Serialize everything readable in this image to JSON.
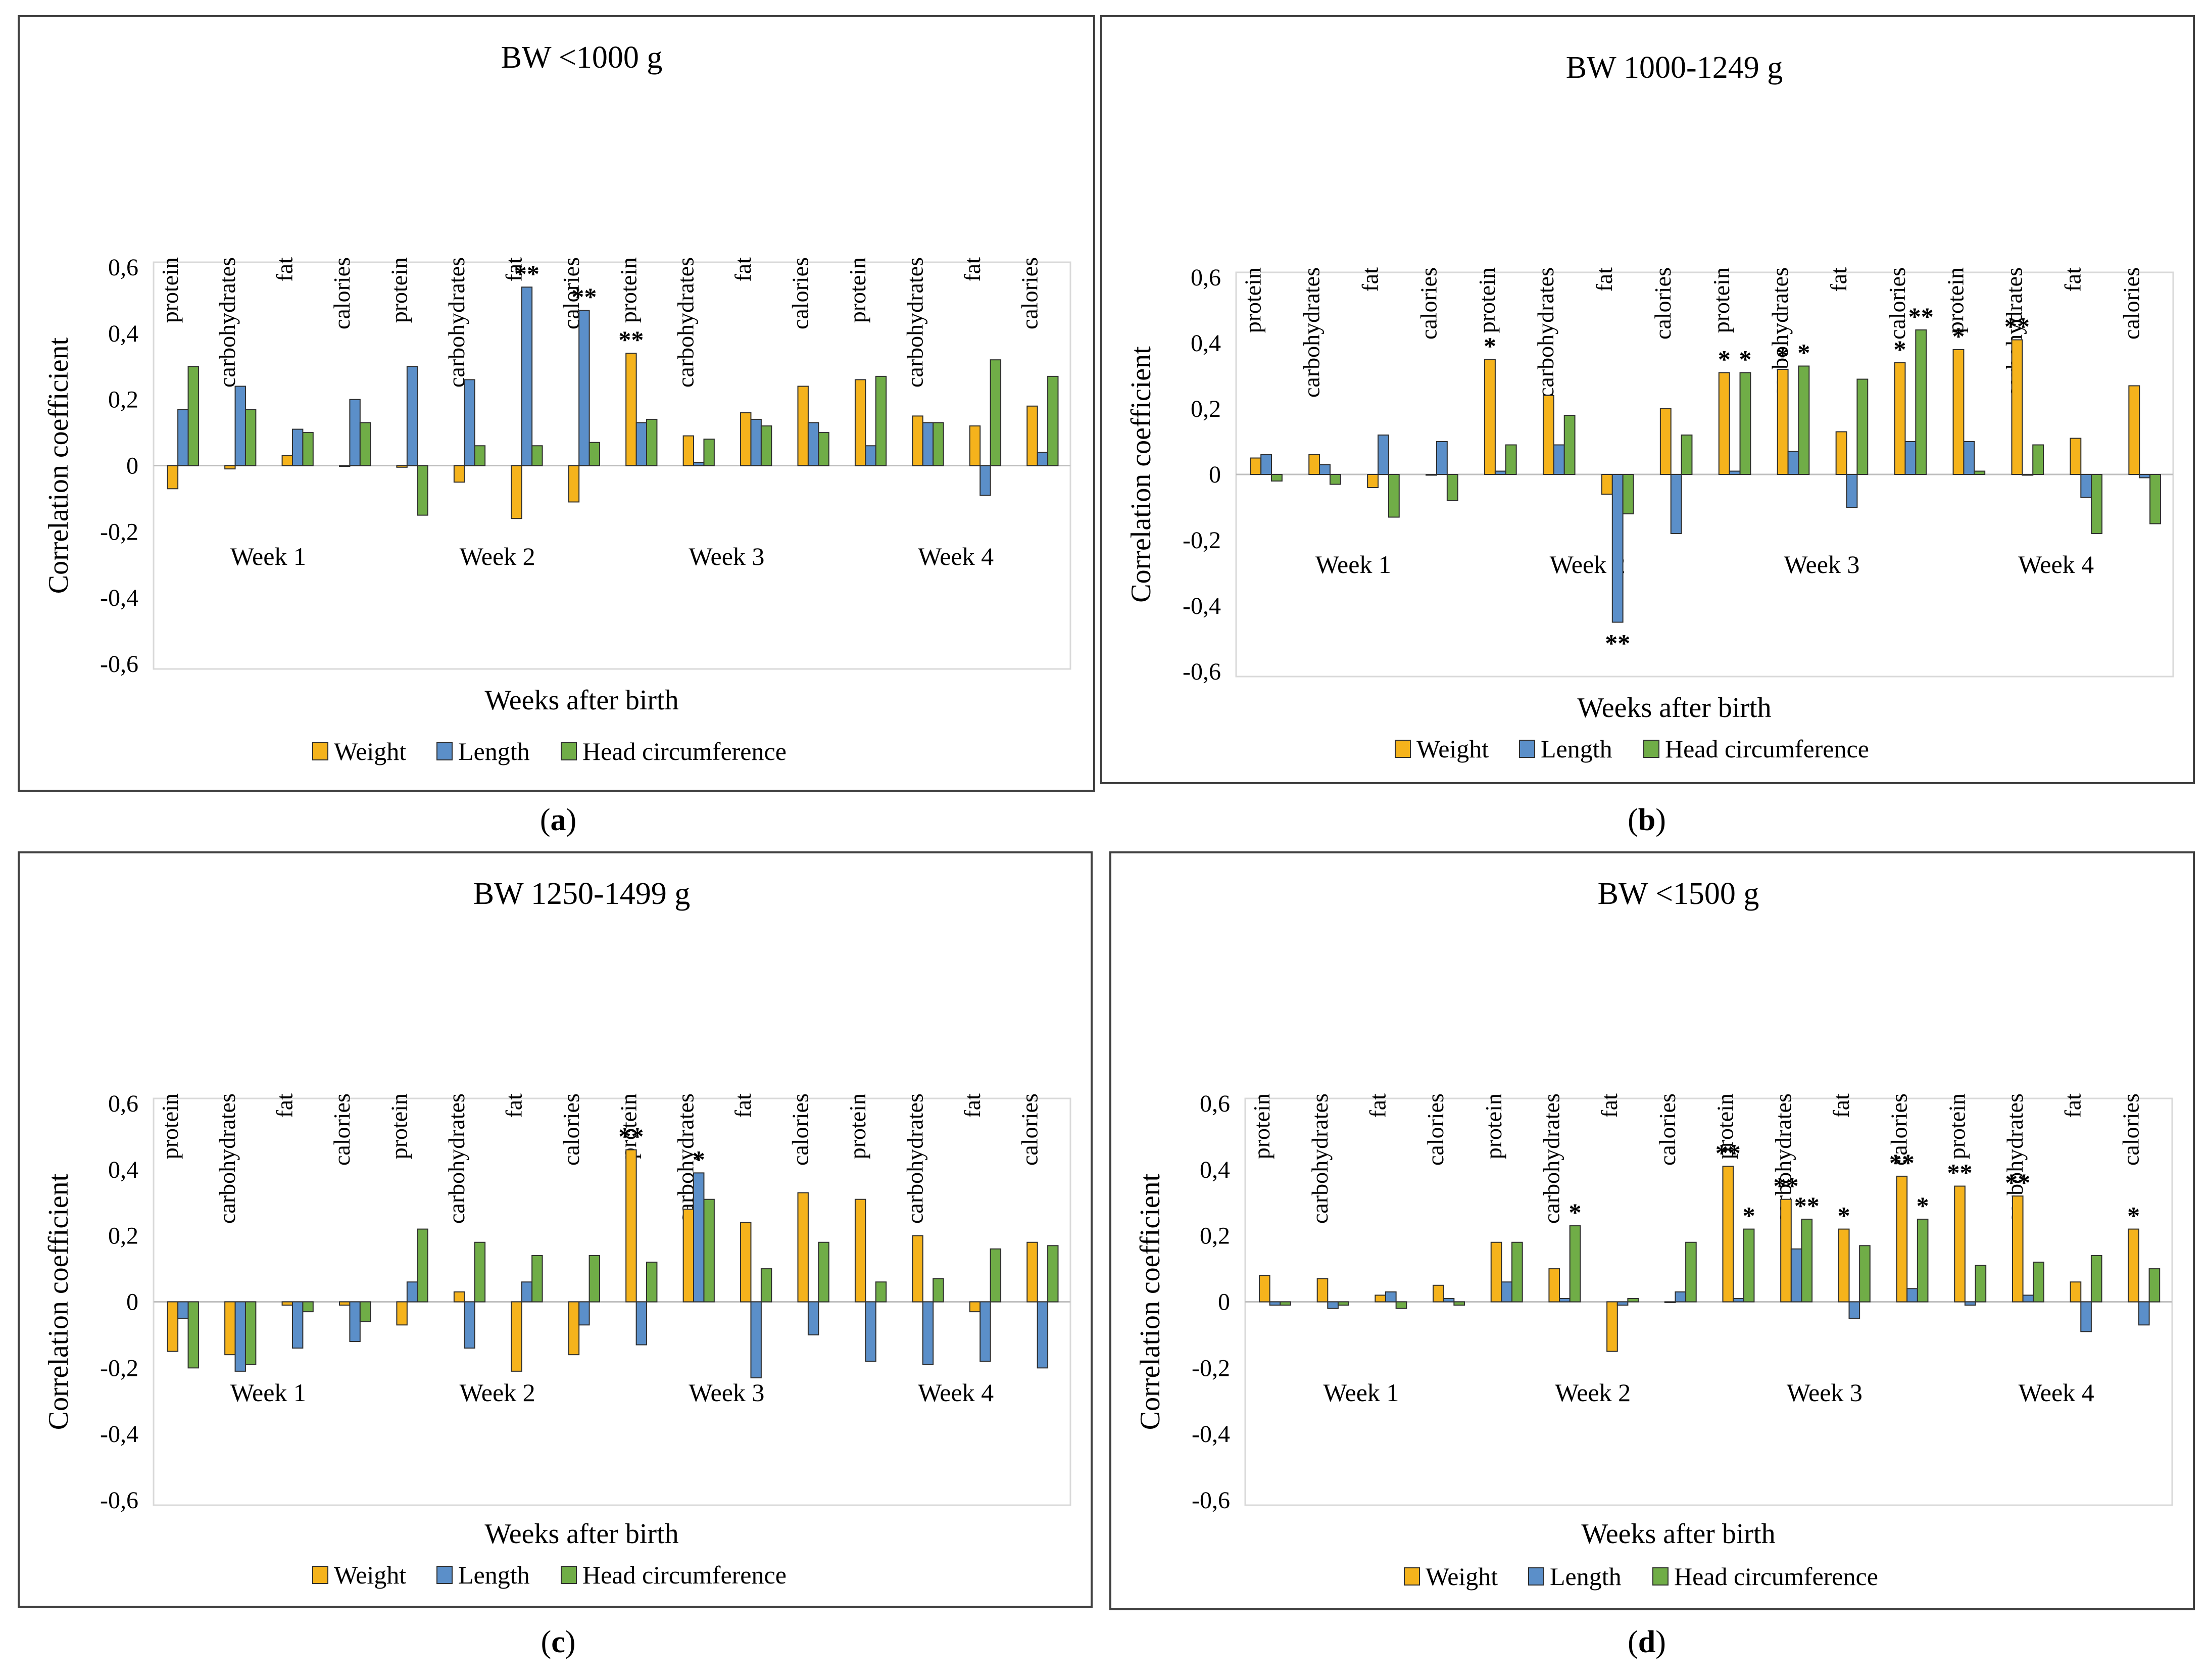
{
  "figure": {
    "captions": [
      "(a)",
      "(b)",
      "(c)",
      "(d)"
    ],
    "caption_letters": [
      "a",
      "b",
      "c",
      "d"
    ]
  },
  "colors": {
    "Weight": "#F5B31C",
    "Length": "#5B8FC9",
    "Head circumference": "#70AD47",
    "bar_outline": "#2f2f2f",
    "grid": "#d9d9d9",
    "frame": "#404040"
  },
  "chart_data": [
    {
      "type": "bar",
      "title": "BW <1000 g",
      "xlabel": "Weeks after birth",
      "ylabel": "Correlation coefficient",
      "ylim": [
        -0.6,
        0.6
      ],
      "yticks": [
        "0,6",
        "0,4",
        "0,2",
        "0",
        "-0,2",
        "-0,4",
        "-0,6"
      ],
      "groups": [
        "Week 1",
        "Week 2",
        "Week 3",
        "Week 4"
      ],
      "categories": [
        "protein",
        "carbohydrates",
        "fat",
        "calories"
      ],
      "legend": [
        "Weight",
        "Length",
        "Head circumference"
      ],
      "series": [
        {
          "name": "Weight",
          "values": [
            [
              -0.07,
              -0.01,
              0.03,
              0.0
            ],
            [
              -0.005,
              -0.05,
              -0.16,
              -0.11
            ],
            [
              0.34,
              0.09,
              0.16,
              0.24
            ],
            [
              0.26,
              0.15,
              0.12,
              0.18
            ]
          ]
        },
        {
          "name": "Length",
          "values": [
            [
              0.17,
              0.24,
              0.11,
              0.2
            ],
            [
              0.3,
              0.26,
              0.54,
              0.47
            ],
            [
              0.13,
              0.01,
              0.14,
              0.13
            ],
            [
              0.06,
              0.13,
              -0.09,
              0.04
            ]
          ]
        },
        {
          "name": "Head circumference",
          "values": [
            [
              0.3,
              0.17,
              0.1,
              0.13
            ],
            [
              -0.15,
              0.06,
              0.06,
              0.07
            ],
            [
              0.14,
              0.08,
              0.12,
              0.1
            ],
            [
              0.27,
              0.13,
              0.32,
              0.27
            ]
          ]
        }
      ],
      "annotations": [
        {
          "group": 1,
          "category": 2,
          "series": "Length",
          "text": "**"
        },
        {
          "group": 1,
          "category": 3,
          "series": "Length",
          "text": "**"
        },
        {
          "group": 2,
          "category": 0,
          "series": "Weight",
          "text": "**"
        }
      ]
    },
    {
      "type": "bar",
      "title": "BW 1000-1249 g",
      "xlabel": "Weeks after birth",
      "ylabel": "Correlation coefficient",
      "ylim": [
        -0.6,
        0.6
      ],
      "yticks": [
        "0,6",
        "0,4",
        "0,2",
        "0",
        "-0,2",
        "-0,4",
        "-0,6"
      ],
      "groups": [
        "Week 1",
        "Week 2",
        "Week 3",
        "Week 4"
      ],
      "categories": [
        "protein",
        "carbohydrates",
        "fat",
        "calories"
      ],
      "legend": [
        "Weight",
        "Length",
        "Head circumference"
      ],
      "series": [
        {
          "name": "Weight",
          "values": [
            [
              0.05,
              0.06,
              -0.04,
              0.0
            ],
            [
              0.35,
              0.24,
              -0.06,
              0.2
            ],
            [
              0.31,
              0.32,
              0.13,
              0.34
            ],
            [
              0.38,
              0.41,
              0.11,
              0.27
            ]
          ]
        },
        {
          "name": "Length",
          "values": [
            [
              0.06,
              0.03,
              0.12,
              0.1
            ],
            [
              0.01,
              0.09,
              -0.45,
              -0.18
            ],
            [
              0.01,
              0.07,
              -0.1,
              0.1
            ],
            [
              0.1,
              0.0,
              -0.07,
              -0.01
            ]
          ]
        },
        {
          "name": "Head circumference",
          "values": [
            [
              -0.02,
              -0.03,
              -0.13,
              -0.08
            ],
            [
              0.09,
              0.18,
              -0.12,
              0.12
            ],
            [
              0.31,
              0.33,
              0.29,
              0.44
            ],
            [
              0.01,
              0.09,
              -0.18,
              -0.15
            ]
          ]
        }
      ],
      "annotations": [
        {
          "group": 1,
          "category": 0,
          "series": "Weight",
          "text": "*"
        },
        {
          "group": 1,
          "category": 2,
          "series": "Length",
          "text": "**"
        },
        {
          "group": 2,
          "category": 0,
          "series": "Weight",
          "text": "*"
        },
        {
          "group": 2,
          "category": 0,
          "series": "Head circumference",
          "text": "*"
        },
        {
          "group": 2,
          "category": 1,
          "series": "Weight",
          "text": "*"
        },
        {
          "group": 2,
          "category": 1,
          "series": "Head circumference",
          "text": "*"
        },
        {
          "group": 2,
          "category": 3,
          "series": "Weight",
          "text": "*"
        },
        {
          "group": 2,
          "category": 3,
          "series": "Head circumference",
          "text": "**"
        },
        {
          "group": 3,
          "category": 0,
          "series": "Weight",
          "text": "*"
        },
        {
          "group": 3,
          "category": 1,
          "series": "Weight",
          "text": "**"
        }
      ]
    },
    {
      "type": "bar",
      "title": "BW 1250-1499 g",
      "xlabel": "Weeks after birth",
      "ylabel": "Correlation coefficient",
      "ylim": [
        -0.6,
        0.6
      ],
      "yticks": [
        "0,6",
        "0,4",
        "0,2",
        "0",
        "-0,2",
        "-0,4",
        "-0,6"
      ],
      "groups": [
        "Week 1",
        "Week 2",
        "Week 3",
        "Week 4"
      ],
      "categories": [
        "protein",
        "carbohydrates",
        "fat",
        "calories"
      ],
      "legend": [
        "Weight",
        "Length",
        "Head circumference"
      ],
      "series": [
        {
          "name": "Weight",
          "values": [
            [
              -0.15,
              -0.16,
              -0.01,
              -0.01
            ],
            [
              -0.07,
              0.03,
              -0.21,
              -0.16
            ],
            [
              0.46,
              0.28,
              0.24,
              0.33
            ],
            [
              0.31,
              0.2,
              -0.03,
              0.18
            ]
          ]
        },
        {
          "name": "Length",
          "values": [
            [
              -0.05,
              -0.21,
              -0.14,
              -0.12
            ],
            [
              0.06,
              -0.14,
              0.06,
              -0.07
            ],
            [
              -0.13,
              0.39,
              -0.23,
              -0.1
            ],
            [
              -0.18,
              -0.19,
              -0.18,
              -0.2
            ]
          ]
        },
        {
          "name": "Head circumference",
          "values": [
            [
              -0.2,
              -0.19,
              -0.03,
              -0.06
            ],
            [
              0.22,
              0.18,
              0.14,
              0.14
            ],
            [
              0.12,
              0.31,
              0.1,
              0.18
            ],
            [
              0.06,
              0.07,
              0.16,
              0.17
            ]
          ]
        }
      ],
      "annotations": [
        {
          "group": 2,
          "category": 0,
          "series": "Weight",
          "text": "**"
        },
        {
          "group": 2,
          "category": 1,
          "series": "Length",
          "text": "*"
        }
      ]
    },
    {
      "type": "bar",
      "title": "BW <1500 g",
      "xlabel": "Weeks after birth",
      "ylabel": "Correlation coefficient",
      "ylim": [
        -0.6,
        0.6
      ],
      "yticks": [
        "0,6",
        "0,4",
        "0,2",
        "0",
        "-0,2",
        "-0,4",
        "-0,6"
      ],
      "groups": [
        "Week 1",
        "Week 2",
        "Week 3",
        "Week 4"
      ],
      "categories": [
        "protein",
        "carbohydrates",
        "fat",
        "calories"
      ],
      "legend": [
        "Weight",
        "Length",
        "Head circumference"
      ],
      "series": [
        {
          "name": "Weight",
          "values": [
            [
              0.08,
              0.07,
              0.02,
              0.05
            ],
            [
              0.18,
              0.1,
              -0.15,
              0.0
            ],
            [
              0.41,
              0.31,
              0.22,
              0.38
            ],
            [
              0.35,
              0.32,
              0.06,
              0.22
            ]
          ]
        },
        {
          "name": "Length",
          "values": [
            [
              -0.01,
              -0.02,
              0.03,
              0.01
            ],
            [
              0.06,
              0.01,
              -0.01,
              0.03
            ],
            [
              0.01,
              0.16,
              -0.05,
              0.04
            ],
            [
              -0.01,
              0.02,
              -0.09,
              -0.07
            ]
          ]
        },
        {
          "name": "Head circumference",
          "values": [
            [
              -0.01,
              -0.01,
              -0.02,
              -0.01
            ],
            [
              0.18,
              0.23,
              0.01,
              0.18
            ],
            [
              0.22,
              0.25,
              0.17,
              0.25
            ],
            [
              0.11,
              0.12,
              0.14,
              0.1
            ]
          ]
        }
      ],
      "annotations": [
        {
          "group": 1,
          "category": 1,
          "series": "Head circumference",
          "text": "*"
        },
        {
          "group": 2,
          "category": 0,
          "series": "Weight",
          "text": "**"
        },
        {
          "group": 2,
          "category": 0,
          "series": "Head circumference",
          "text": "*"
        },
        {
          "group": 2,
          "category": 1,
          "series": "Weight",
          "text": "**"
        },
        {
          "group": 2,
          "category": 1,
          "series": "Head circumference",
          "text": "**"
        },
        {
          "group": 2,
          "category": 2,
          "series": "Weight",
          "text": "*"
        },
        {
          "group": 2,
          "category": 3,
          "series": "Weight",
          "text": "**"
        },
        {
          "group": 2,
          "category": 3,
          "series": "Head circumference",
          "text": "*"
        },
        {
          "group": 3,
          "category": 0,
          "series": "Weight",
          "text": "**"
        },
        {
          "group": 3,
          "category": 1,
          "series": "Weight",
          "text": "**"
        },
        {
          "group": 3,
          "category": 3,
          "series": "Weight",
          "text": "*"
        }
      ]
    }
  ]
}
